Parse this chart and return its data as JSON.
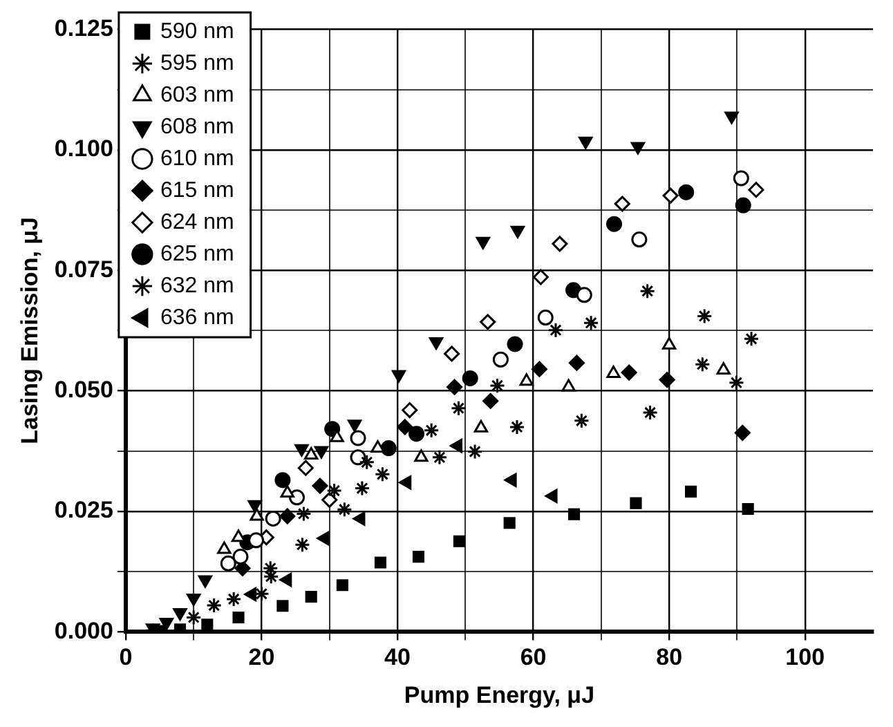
{
  "chart_data": {
    "type": "scatter",
    "xlabel": "Pump Energy, μJ",
    "ylabel": "Lasing Emission, μJ",
    "xlim": [
      0,
      110
    ],
    "xticks": [
      0,
      {
        "value": 10,
        "label": null
      },
      20,
      {
        "value": 30,
        "label": null
      },
      40,
      {
        "value": 50,
        "label": null
      },
      60,
      {
        "value": 70,
        "label": null
      },
      80,
      {
        "value": 90,
        "label": null
      },
      100
    ],
    "ylim": [
      0,
      0.125
    ],
    "yticks": [
      {
        "value": 0,
        "label": "0.000"
      },
      {
        "value": 0.0125,
        "label": null
      },
      {
        "value": 0.025,
        "label": "0.025"
      },
      {
        "value": 0.0375,
        "label": null
      },
      {
        "value": 0.05,
        "label": "0.050"
      },
      {
        "value": 0.0625,
        "label": null
      },
      {
        "value": 0.075,
        "label": "0.075"
      },
      {
        "value": 0.0875,
        "label": null
      },
      {
        "value": 0.1,
        "label": "0.100"
      },
      {
        "value": 0.1125,
        "label": null
      },
      {
        "value": 0.125,
        "label": "0.125"
      }
    ],
    "grid": true,
    "legend": "top left",
    "series": [
      {
        "name": "590 nm",
        "color": "#000000",
        "marker": "square",
        "x": [
          5,
          8,
          12,
          16.6,
          23.1,
          27.3,
          31.9,
          37.5,
          43.1,
          49.1,
          56.5,
          66.0,
          75.1,
          83.2,
          91.6
        ],
        "values": [
          0.0002,
          0.0005,
          0.0015,
          0.003,
          0.0054,
          0.0073,
          0.0097,
          0.0144,
          0.0156,
          0.0188,
          0.0226,
          0.0244,
          0.0267,
          0.0291,
          0.0255
        ]
      },
      {
        "name": "595 nm",
        "color": "#000000",
        "x": [
          4,
          10,
          13,
          20,
          21.3,
          26.2,
          30.7,
          35.5,
          46.2,
          49,
          54.7,
          63.3,
          68.5,
          76.8,
          85.2,
          92.1
        ],
        "values": [
          0.0003,
          0.003,
          0.0055,
          0.0079,
          0.0132,
          0.0245,
          0.0293,
          0.0352,
          0.0362,
          0.0464,
          0.0511,
          0.0626,
          0.0641,
          0.0707,
          0.0655,
          0.0608
        ]
      },
      {
        "name": "603 nm",
        "color": "#000000",
        "x": [
          14.5,
          16.6,
          19.3,
          23.8,
          27.3,
          31.1,
          37.1,
          43.5,
          52.3,
          59,
          65.2,
          71.8,
          80,
          88
        ],
        "values": [
          0.0171,
          0.0196,
          0.024,
          0.0288,
          0.0367,
          0.0403,
          0.0381,
          0.0362,
          0.0423,
          0.052,
          0.0508,
          0.0536,
          0.0595,
          0.0543
        ]
      },
      {
        "name": "608 nm",
        "color": "#000000",
        "marker": "triangle",
        "x": [
          4,
          6,
          8,
          10,
          11.7,
          19,
          25.9,
          28.8,
          33.7,
          40.2,
          45.7,
          52.6,
          57.7,
          67.7,
          75.4,
          89.2
        ],
        "values": [
          0.0008,
          0.002,
          0.004,
          0.007,
          0.0108,
          0.0264,
          0.038,
          0.0376,
          0.0431,
          0.0534,
          0.0602,
          0.081,
          0.0833,
          0.1018,
          0.1007,
          0.107
        ]
      },
      {
        "name": "610 nm",
        "color": "#000000",
        "x": [
          15.1,
          16.9,
          19.2,
          21.7,
          25.2,
          34.2,
          34.2,
          55.2,
          61.8,
          67.5,
          75.6,
          90.6
        ],
        "values": [
          0.0142,
          0.0156,
          0.019,
          0.0235,
          0.0279,
          0.0362,
          0.0402,
          0.0565,
          0.0652,
          0.0699,
          0.0814,
          0.0941
        ]
      },
      {
        "name": "615 nm",
        "color": "#000000",
        "x": [
          17.2,
          23.8,
          28.6,
          41.1,
          48.4,
          53.7,
          60.9,
          66.4,
          74.1,
          79.7,
          90.8
        ],
        "values": [
          0.0132,
          0.024,
          0.0303,
          0.0425,
          0.0508,
          0.0479,
          0.0545,
          0.0558,
          0.0538,
          0.0523,
          0.0413
        ]
      },
      {
        "name": "624 nm",
        "color": "#000000",
        "marker": "diamond",
        "x": [
          20.7,
          26.5,
          30,
          41.8,
          48,
          53.3,
          61.1,
          63.9,
          73.1,
          80.2,
          92.8
        ],
        "values": [
          0.0196,
          0.034,
          0.0274,
          0.046,
          0.0577,
          0.0643,
          0.0736,
          0.0805,
          0.0888,
          0.0905,
          0.0917
        ]
      },
      {
        "name": "625 nm",
        "color": "#000000",
        "x": [
          17.9,
          23.1,
          30.4,
          38.7,
          42.8,
          50.7,
          57.3,
          65.9,
          71.9,
          82.5,
          90.9
        ],
        "values": [
          0.0186,
          0.0315,
          0.0421,
          0.0381,
          0.0411,
          0.0526,
          0.0597,
          0.0709,
          0.0846,
          0.0912,
          0.0885
        ]
      },
      {
        "name": "632 nm",
        "color": "#000000",
        "x": [
          15.9,
          21.4,
          26,
          32.2,
          34.8,
          37.8,
          45,
          51.4,
          57.6,
          67.1,
          77.2,
          84.9,
          89.9
        ],
        "values": [
          0.0068,
          0.0115,
          0.0181,
          0.0254,
          0.0298,
          0.0327,
          0.0418,
          0.0374,
          0.0425,
          0.0438,
          0.0455,
          0.0555,
          0.0517
        ]
      },
      {
        "name": "636 nm",
        "color": "#000000",
        "marker": "triangle",
        "x": [
          18.6,
          23.8,
          29.3,
          34.6,
          41.4,
          48.9,
          56.9,
          62.9
        ],
        "values": [
          0.0078,
          0.0108,
          0.0194,
          0.0235,
          0.031,
          0.0386,
          0.0315,
          0.0282
        ]
      }
    ]
  }
}
